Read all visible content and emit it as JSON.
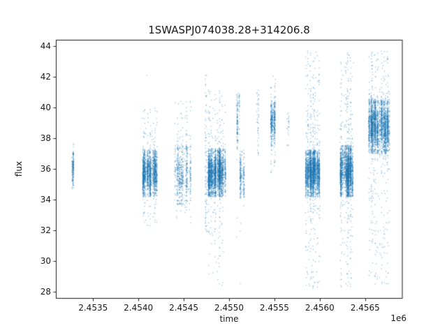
{
  "chart_data": {
    "type": "scatter",
    "title": "1SWASPJ074038.28+314206.8",
    "xlabel": "time",
    "ylabel": "flux",
    "x_offset_label": "1e6",
    "marker_color": "#1f77b4",
    "marker_alpha": 0.45,
    "xlim": [
      2453090,
      2456910
    ],
    "ylim": [
      27.6,
      44.4
    ],
    "xticks": {
      "values": [
        2453500,
        2454000,
        2454500,
        2455000,
        2455500,
        2456000,
        2456500
      ],
      "labels": [
        "2.4535",
        "2.4540",
        "2.4545",
        "2.4550",
        "2.4555",
        "2.4560",
        "2.4565"
      ]
    },
    "yticks": {
      "values": [
        28,
        30,
        32,
        34,
        36,
        38,
        40,
        42,
        44
      ],
      "labels": [
        "28",
        "30",
        "32",
        "34",
        "36",
        "38",
        "40",
        "42",
        "44"
      ]
    },
    "clusters": [
      {
        "t0": 2453266,
        "t1": 2453291,
        "lo": 35.0,
        "hi": 36.9,
        "n": 170,
        "dist": "gauss",
        "up": {
          "max": 37.8,
          "n": 7
        },
        "down": {
          "min": 34.6,
          "n": 5
        }
      },
      {
        "t0": 2454040,
        "t1": 2454210,
        "lo": 34.5,
        "hi": 37.0,
        "n": 1700,
        "dist": "gauss",
        "up": {
          "max": 40.1,
          "n": 85
        },
        "down": {
          "min": 32.3,
          "n": 50
        }
      },
      {
        "t0": 2454400,
        "t1": 2454580,
        "lo": 34.0,
        "hi": 37.3,
        "n": 560,
        "dist": "gauss",
        "up": {
          "max": 40.5,
          "n": 70
        },
        "down": {
          "min": 32.4,
          "n": 25
        }
      },
      {
        "t0": 2454733,
        "t1": 2454762,
        "lo": 31.9,
        "hi": 42.3,
        "n": 95,
        "dist": "uniform"
      },
      {
        "t0": 2454764,
        "t1": 2454960,
        "lo": 34.5,
        "hi": 37.1,
        "n": 2700,
        "dist": "gauss",
        "up": {
          "max": 41.2,
          "n": 90
        },
        "down": {
          "min": 28.4,
          "n": 85
        }
      },
      {
        "t0": 2455088,
        "t1": 2455118,
        "lo": 37.5,
        "hi": 40.7,
        "n": 140,
        "dist": "gauss",
        "down": {
          "min": 30.2,
          "n": 3
        }
      },
      {
        "t0": 2455121,
        "t1": 2455166,
        "lo": 34.4,
        "hi": 37.0,
        "n": 240,
        "dist": "gauss",
        "down": {
          "min": 28.5,
          "n": 4
        }
      },
      {
        "t0": 2455300,
        "t1": 2455332,
        "lo": 36.9,
        "hi": 41.3,
        "n": 44,
        "dist": "uniform"
      },
      {
        "t0": 2455462,
        "t1": 2455512,
        "lo": 37.8,
        "hi": 40.1,
        "n": 430,
        "dist": "gauss",
        "up": {
          "max": 42.1,
          "n": 25
        },
        "down": {
          "min": 35.7,
          "n": 22
        }
      },
      {
        "t0": 2455637,
        "t1": 2455660,
        "lo": 37.5,
        "hi": 39.7,
        "n": 22,
        "dist": "uniform"
      },
      {
        "t0": 2455840,
        "t1": 2456002,
        "lo": 34.5,
        "hi": 37.0,
        "n": 2400,
        "dist": "gauss",
        "up": {
          "max": 43.7,
          "n": 185
        },
        "down": {
          "min": 28.2,
          "n": 130
        }
      },
      {
        "t0": 2456215,
        "t1": 2456365,
        "lo": 34.5,
        "hi": 37.3,
        "n": 2200,
        "dist": "gauss",
        "up": {
          "max": 43.6,
          "n": 160
        },
        "down": {
          "min": 28.3,
          "n": 115
        }
      },
      {
        "t0": 2456540,
        "t1": 2456770,
        "lo": 37.3,
        "hi": 40.3,
        "n": 2500,
        "dist": "gauss",
        "up": {
          "max": 43.7,
          "n": 130
        },
        "down": {
          "min": 28.5,
          "n": 200
        }
      }
    ],
    "extra_points": [
      [
        2454093,
        42.1
      ]
    ]
  }
}
